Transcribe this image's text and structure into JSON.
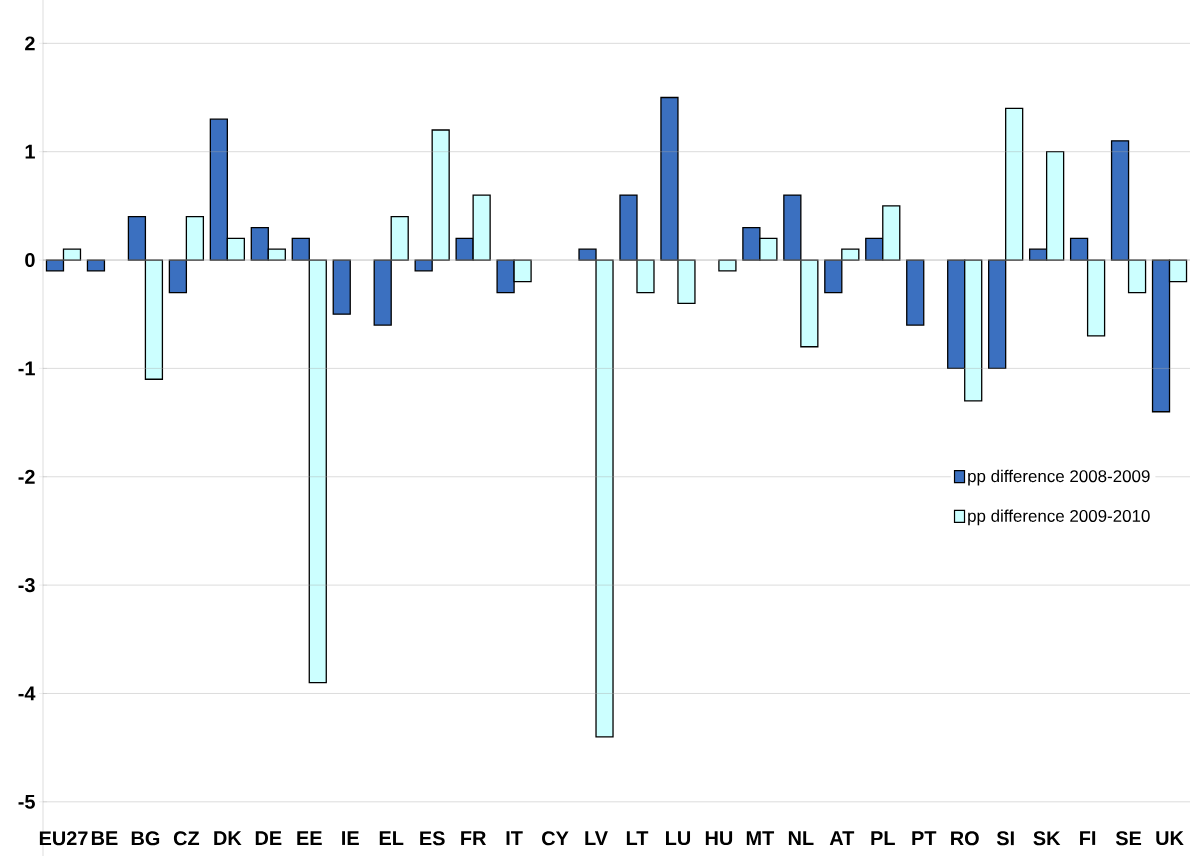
{
  "chart_data": {
    "type": "bar",
    "categories": [
      "EU27",
      "BE",
      "BG",
      "CZ",
      "DK",
      "DE",
      "EE",
      "IE",
      "EL",
      "ES",
      "FR",
      "IT",
      "CY",
      "LV",
      "LT",
      "LU",
      "HU",
      "MT",
      "NL",
      "AT",
      "PL",
      "PT",
      "RO",
      "SI",
      "SK",
      "FI",
      "SE",
      "UK"
    ],
    "series": [
      {
        "name": "pp difference 2008-2009",
        "color": "#3b70c0",
        "values": [
          -0.1,
          -0.1,
          0.4,
          -0.3,
          1.3,
          0.3,
          0.2,
          -0.5,
          -0.6,
          -0.1,
          0.2,
          -0.3,
          null,
          0.1,
          0.6,
          1.5,
          null,
          0.3,
          0.6,
          -0.3,
          0.2,
          -0.6,
          -1.0,
          -1.0,
          0.1,
          0.2,
          1.1,
          -1.4
        ]
      },
      {
        "name": "pp difference 2009-2010",
        "color": "#ccffff",
        "values": [
          0.1,
          null,
          -1.1,
          0.4,
          0.2,
          0.1,
          -3.9,
          null,
          0.4,
          1.2,
          0.6,
          -0.2,
          null,
          -4.4,
          -0.3,
          -0.4,
          -0.1,
          0.2,
          -0.8,
          0.1,
          0.5,
          null,
          -1.3,
          1.4,
          1.0,
          -0.7,
          -0.3,
          -0.2
        ]
      }
    ],
    "ylim": [
      -5.5,
      2.4
    ],
    "yticks": [
      -5,
      -4,
      -3,
      -2,
      -1,
      0,
      1,
      2
    ],
    "grid": "y",
    "legend": "right"
  }
}
